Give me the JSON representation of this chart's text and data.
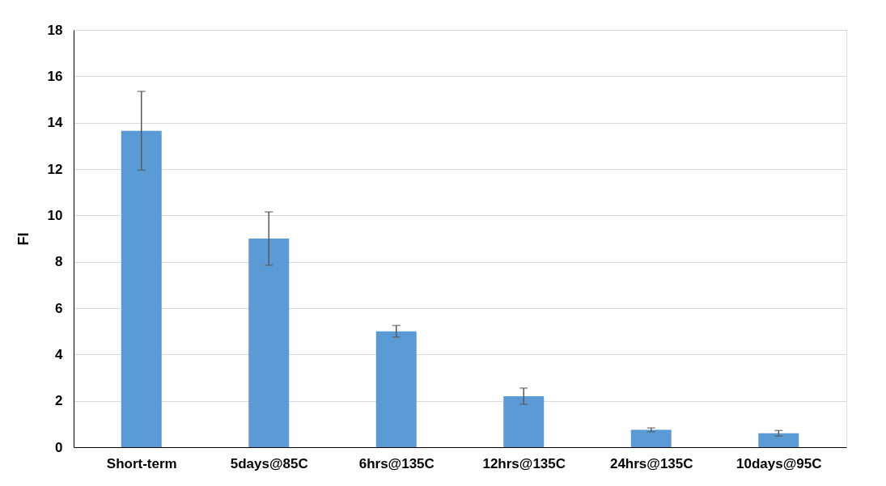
{
  "chart_data": {
    "type": "bar",
    "ylabel": "FI",
    "categories": [
      "Short-term",
      "5days@85C",
      "6hrs@135C",
      "12hrs@135C",
      "24hrs@135C",
      "10days@95C"
    ],
    "values": [
      13.65,
      9.0,
      5.0,
      2.2,
      0.75,
      0.6
    ],
    "errors": [
      1.7,
      1.15,
      0.25,
      0.35,
      0.08,
      0.12
    ],
    "color": "#5b9bd5",
    "ylim": [
      0,
      18
    ],
    "yticks": [
      0,
      2,
      4,
      6,
      8,
      10,
      12,
      14,
      16,
      18
    ],
    "grid": "y"
  }
}
